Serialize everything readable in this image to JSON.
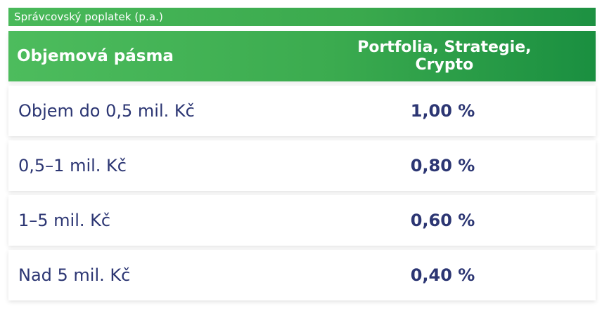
{
  "table": {
    "caption": "Správcovský poplatek (p.a.)",
    "header": {
      "col1": "Objemová pásma",
      "col2_line1": "Portfolia, Strategie,",
      "col2_line2": "Crypto"
    },
    "rows": [
      {
        "band": "Objem do 0,5 mil. Kč",
        "fee": "1,00 %"
      },
      {
        "band": "0,5–1 mil. Kč",
        "fee": "0,80 %"
      },
      {
        "band": "1–5 mil. Kč",
        "fee": "0,60 %"
      },
      {
        "band": "Nad 5 mil. Kč",
        "fee": "0,40 %"
      }
    ]
  },
  "colors": {
    "green_light": "#4dbc5d",
    "green_dark": "#1a8f40",
    "text_navy": "#2c3673"
  }
}
